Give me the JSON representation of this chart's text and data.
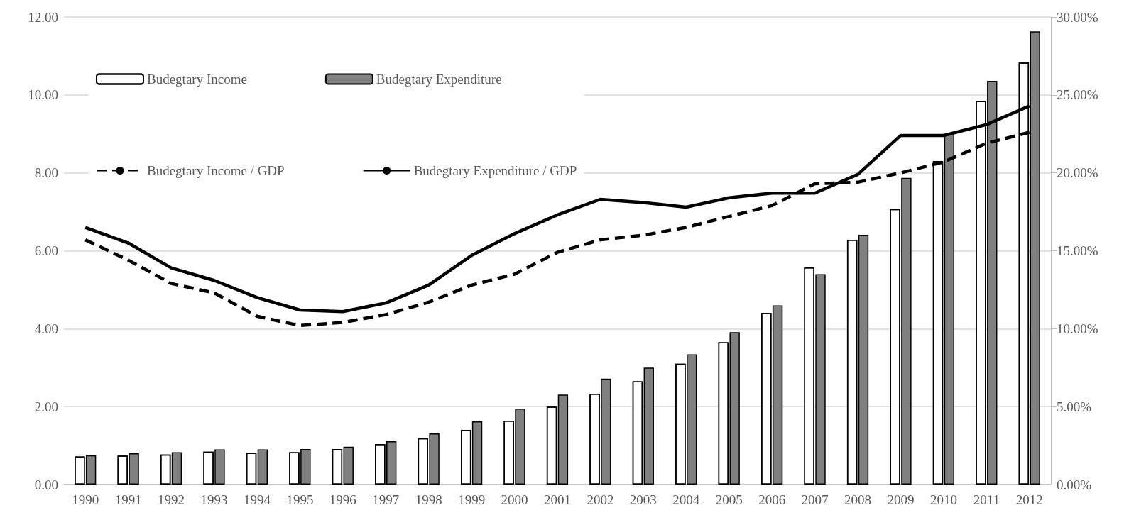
{
  "chart_data": {
    "type": "bar",
    "categories": [
      "1990",
      "1991",
      "1992",
      "1993",
      "1994",
      "1995",
      "1996",
      "1997",
      "1998",
      "1999",
      "2000",
      "2001",
      "2002",
      "2003",
      "2004",
      "2005",
      "2006",
      "2007",
      "2008",
      "2009",
      "2010",
      "2011",
      "2012"
    ],
    "series": [
      {
        "name": "Budegtary Income",
        "color": "#ffffff",
        "values": [
          0.72,
          0.74,
          0.77,
          0.84,
          0.81,
          0.83,
          0.91,
          1.04,
          1.19,
          1.4,
          1.64,
          2.0,
          2.33,
          2.65,
          3.1,
          3.65,
          4.4,
          5.57,
          6.28,
          7.07,
          8.3,
          9.84,
          10.83
        ]
      },
      {
        "name": "Budegtary Expenditure",
        "color": "#808080",
        "values": [
          0.75,
          0.8,
          0.83,
          0.9,
          0.9,
          0.91,
          0.97,
          1.11,
          1.31,
          1.62,
          1.95,
          2.31,
          2.72,
          3.0,
          3.34,
          3.91,
          4.6,
          5.4,
          6.41,
          7.87,
          8.99,
          10.36,
          11.63
        ]
      },
      {
        "name": "Budegtary Income / GDP",
        "type": "line",
        "axis": "y2",
        "line_style": "dashed",
        "color": "#000000",
        "values": [
          15.7,
          14.4,
          12.9,
          12.3,
          10.8,
          10.2,
          10.4,
          10.9,
          11.7,
          12.8,
          13.5,
          14.9,
          15.7,
          16.0,
          16.5,
          17.2,
          17.9,
          19.3,
          19.4,
          20.0,
          20.7,
          21.9,
          22.6
        ]
      },
      {
        "name": "Budegtary Expenditure / GDP",
        "type": "line",
        "axis": "y2",
        "line_style": "solid",
        "color": "#000000",
        "values": [
          16.5,
          15.5,
          13.9,
          13.1,
          12.0,
          11.2,
          11.1,
          11.65,
          12.8,
          14.7,
          16.1,
          17.3,
          18.3,
          18.1,
          17.8,
          18.4,
          18.7,
          18.7,
          19.9,
          22.4,
          22.4,
          23.1,
          24.3
        ]
      }
    ],
    "ylim": [
      0,
      12
    ],
    "yticks": [
      {
        "value": 0,
        "label": "0.00"
      },
      {
        "value": 2,
        "label": "2.00"
      },
      {
        "value": 4,
        "label": "4.00"
      },
      {
        "value": 6,
        "label": "6.00"
      },
      {
        "value": 8,
        "label": "8.00"
      },
      {
        "value": 10,
        "label": "10.00"
      },
      {
        "value": 12,
        "label": "12.00"
      }
    ],
    "y2lim": [
      0,
      30
    ],
    "y2ticks": [
      {
        "value": 0,
        "label": "0.00%"
      },
      {
        "value": 5,
        "label": "5.00%"
      },
      {
        "value": 10,
        "label": "10.00%"
      },
      {
        "value": 15,
        "label": "15.00%"
      },
      {
        "value": 20,
        "label": "20.00%"
      },
      {
        "value": 25,
        "label": "25.00%"
      },
      {
        "value": 30,
        "label": "30.00%"
      }
    ],
    "grid": "y",
    "legend": "top left",
    "marker": "none"
  }
}
